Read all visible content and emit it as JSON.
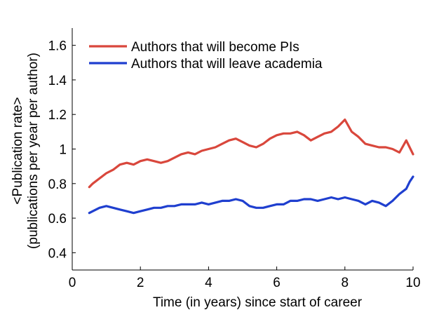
{
  "chart_data": {
    "type": "line",
    "title": "",
    "xlabel": "Time (in years) since start of career",
    "ylabel_line1": "<Publication rate>",
    "ylabel_line2": "(publications per year per author)",
    "xlim": [
      0,
      10
    ],
    "ylim": [
      0.3,
      1.7
    ],
    "xticks": [
      0,
      2,
      4,
      6,
      8,
      10
    ],
    "xtick_labels": [
      "0",
      "2",
      "4",
      "6",
      "8",
      "10"
    ],
    "yticks": [
      0.4,
      0.6,
      0.8,
      1.0,
      1.2,
      1.4,
      1.6
    ],
    "ytick_labels": [
      "0.4",
      "0.6",
      "0.8",
      "1",
      "1.2",
      "1.4",
      "1.6"
    ],
    "grid": false,
    "legend_position": "top-left",
    "series": [
      {
        "name": "Authors that will become PIs",
        "color": "#d9473c",
        "x": [
          0.5,
          0.6,
          0.8,
          1.0,
          1.2,
          1.4,
          1.6,
          1.8,
          2.0,
          2.2,
          2.4,
          2.6,
          2.8,
          3.0,
          3.2,
          3.4,
          3.6,
          3.8,
          4.0,
          4.2,
          4.4,
          4.6,
          4.8,
          5.0,
          5.2,
          5.4,
          5.6,
          5.8,
          6.0,
          6.2,
          6.4,
          6.6,
          6.8,
          7.0,
          7.2,
          7.4,
          7.6,
          7.8,
          8.0,
          8.2,
          8.4,
          8.6,
          8.8,
          9.0,
          9.2,
          9.4,
          9.6,
          9.8,
          9.9,
          10.0
        ],
        "y": [
          0.78,
          0.8,
          0.83,
          0.86,
          0.88,
          0.91,
          0.92,
          0.91,
          0.93,
          0.94,
          0.93,
          0.92,
          0.93,
          0.95,
          0.97,
          0.98,
          0.97,
          0.99,
          1.0,
          1.01,
          1.03,
          1.05,
          1.06,
          1.04,
          1.02,
          1.01,
          1.03,
          1.06,
          1.08,
          1.09,
          1.09,
          1.1,
          1.08,
          1.05,
          1.07,
          1.09,
          1.1,
          1.13,
          1.17,
          1.1,
          1.07,
          1.03,
          1.02,
          1.01,
          1.01,
          1.0,
          0.98,
          1.05,
          1.01,
          0.97
        ]
      },
      {
        "name": "Authors that will leave academia",
        "color": "#1f3fcf",
        "x": [
          0.5,
          0.6,
          0.8,
          1.0,
          1.2,
          1.4,
          1.6,
          1.8,
          2.0,
          2.2,
          2.4,
          2.6,
          2.8,
          3.0,
          3.2,
          3.4,
          3.6,
          3.8,
          4.0,
          4.2,
          4.4,
          4.6,
          4.8,
          5.0,
          5.2,
          5.4,
          5.6,
          5.8,
          6.0,
          6.2,
          6.4,
          6.6,
          6.8,
          7.0,
          7.2,
          7.4,
          7.6,
          7.8,
          8.0,
          8.2,
          8.4,
          8.6,
          8.8,
          9.0,
          9.2,
          9.4,
          9.6,
          9.8,
          9.9,
          10.0
        ],
        "y": [
          0.63,
          0.64,
          0.66,
          0.67,
          0.66,
          0.65,
          0.64,
          0.63,
          0.64,
          0.65,
          0.66,
          0.66,
          0.67,
          0.67,
          0.68,
          0.68,
          0.68,
          0.69,
          0.68,
          0.69,
          0.7,
          0.7,
          0.71,
          0.7,
          0.67,
          0.66,
          0.66,
          0.67,
          0.68,
          0.68,
          0.7,
          0.7,
          0.71,
          0.71,
          0.7,
          0.71,
          0.72,
          0.71,
          0.72,
          0.71,
          0.7,
          0.68,
          0.7,
          0.69,
          0.67,
          0.7,
          0.74,
          0.77,
          0.81,
          0.84
        ]
      }
    ]
  }
}
